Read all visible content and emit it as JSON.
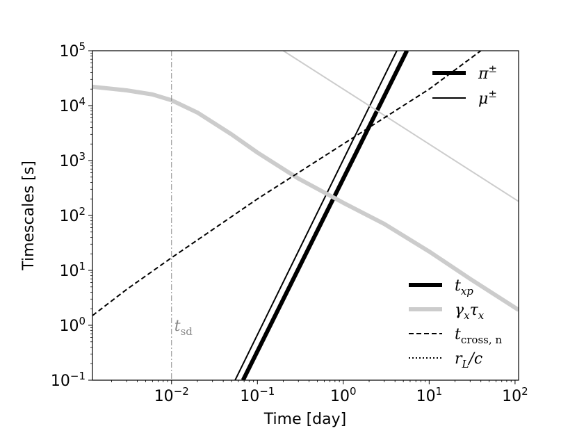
{
  "chart_data": {
    "type": "line",
    "xscale": "log",
    "yscale": "log",
    "xlim": [
      0.0012,
      110
    ],
    "ylim": [
      0.1,
      100000
    ],
    "xlabel": "Time [day]",
    "ylabel": "Timescales [s]",
    "x_ticks": [
      {
        "value": 0.01,
        "base": "10",
        "exp": "−2"
      },
      {
        "value": 0.1,
        "base": "10",
        "exp": "−1"
      },
      {
        "value": 1,
        "base": "10",
        "exp": "0"
      },
      {
        "value": 10,
        "base": "10",
        "exp": "1"
      },
      {
        "value": 100,
        "base": "10",
        "exp": "2"
      }
    ],
    "y_ticks": [
      {
        "value": 0.1,
        "base": "10",
        "exp": "−1"
      },
      {
        "value": 1,
        "base": "10",
        "exp": "0"
      },
      {
        "value": 10,
        "base": "10",
        "exp": "1"
      },
      {
        "value": 100,
        "base": "10",
        "exp": "2"
      },
      {
        "value": 1000,
        "base": "10",
        "exp": "3"
      },
      {
        "value": 10000,
        "base": "10",
        "exp": "4"
      },
      {
        "value": 100000,
        "base": "10",
        "exp": "5"
      }
    ],
    "series": [
      {
        "label": "t_xp (π±)",
        "color": "#000000",
        "style": "solid",
        "weight": "thick",
        "points": [
          [
            0.068,
            0.1
          ],
          [
            5.5,
            100000
          ]
        ]
      },
      {
        "label": "t_xp (μ±)",
        "color": "#000000",
        "style": "solid",
        "weight": "thin",
        "points": [
          [
            0.055,
            0.1
          ],
          [
            4.2,
            100000
          ]
        ]
      },
      {
        "label": "γxτx (π±)",
        "color": "#cccccc",
        "style": "solid",
        "weight": "thick",
        "points": [
          [
            0.0012,
            22000
          ],
          [
            0.003,
            19000
          ],
          [
            0.006,
            16000
          ],
          [
            0.01,
            12500
          ],
          [
            0.02,
            7500
          ],
          [
            0.05,
            3000
          ],
          [
            0.1,
            1400
          ],
          [
            0.3,
            470
          ],
          [
            0.7,
            230
          ],
          [
            1,
            170
          ],
          [
            3,
            70
          ],
          [
            10,
            22
          ],
          [
            30,
            7
          ],
          [
            110,
            1.9
          ]
        ]
      },
      {
        "label": "γxτx (μ±)",
        "color": "#cccccc",
        "style": "solid",
        "weight": "thin",
        "points": [
          [
            0.2,
            100000
          ],
          [
            2.5,
            8000
          ],
          [
            110,
            180
          ]
        ]
      },
      {
        "label": "t_cross,n",
        "color": "#000000",
        "style": "dashed",
        "weight": "normal",
        "points": [
          [
            0.0012,
            1.5
          ],
          [
            0.003,
            4.5
          ],
          [
            0.01,
            17
          ],
          [
            0.03,
            55
          ],
          [
            0.1,
            200
          ],
          [
            0.3,
            600
          ],
          [
            1,
            2000
          ],
          [
            3,
            6000
          ],
          [
            10,
            20000
          ],
          [
            40,
            100000
          ]
        ]
      }
    ],
    "annotations": [
      {
        "type": "vline",
        "x": 0.01,
        "color": "#888888",
        "style": "dashdot",
        "label": "t",
        "label_sub": "sd"
      }
    ],
    "legends": [
      {
        "placement": "upper-right",
        "entries": [
          {
            "base": "π",
            "sup": "±",
            "color": "#000000",
            "style": "solid",
            "weight": "thick"
          },
          {
            "base": "μ",
            "sup": "±",
            "color": "#000000",
            "style": "solid",
            "weight": "thin"
          }
        ]
      },
      {
        "placement": "lower-right",
        "entries": [
          {
            "base": "t",
            "sub": "xp",
            "color": "#000000",
            "style": "solid",
            "weight": "thick"
          },
          {
            "base": "γ",
            "sub": "x",
            "base2": "τ",
            "sub2": "x",
            "color": "#cccccc",
            "style": "solid",
            "weight": "thick"
          },
          {
            "base": "t",
            "sub": "cross, n",
            "color": "#000000",
            "style": "dashed",
            "weight": "normal"
          },
          {
            "base": "r",
            "sub": "L",
            "rest": "/c",
            "color": "#000000",
            "style": "dotted",
            "weight": "normal"
          }
        ]
      }
    ]
  }
}
